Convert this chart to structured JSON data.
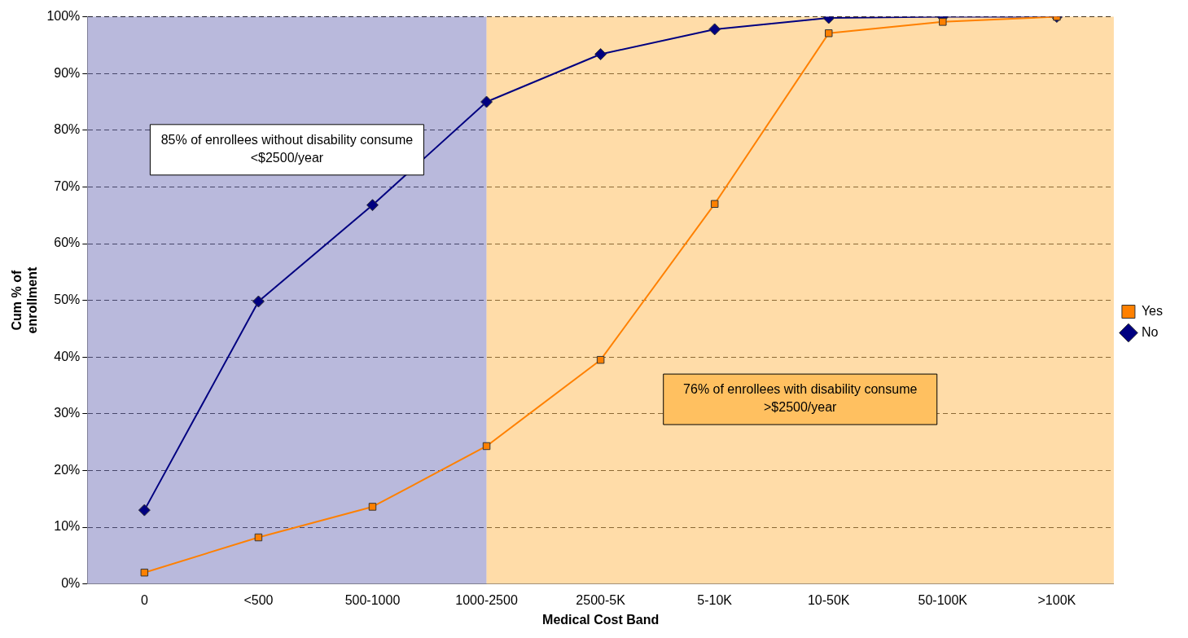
{
  "chart_data": {
    "type": "line",
    "xlabel": "Medical Cost Band",
    "ylabel": "Cum % of enrollment",
    "categories": [
      "0",
      "<500",
      "500-1000",
      "1000-2500",
      "2500-5K",
      "5-10K",
      "10-50K",
      "50-100K",
      ">100K"
    ],
    "series": [
      {
        "name": "No",
        "color": "#000080",
        "marker": "diamond",
        "values": [
          13,
          49.8,
          66.8,
          85,
          93.4,
          97.8,
          99.8,
          100,
          100
        ]
      },
      {
        "name": "Yes",
        "color": "#ff8000",
        "marker": "square",
        "values": [
          2,
          8.2,
          13.6,
          24.3,
          39.5,
          67,
          97.1,
          99.1,
          100
        ]
      }
    ],
    "ylim": [
      0,
      100
    ],
    "yticks": [
      {
        "value": 0,
        "label": "0%"
      },
      {
        "value": 10,
        "label": "10%"
      },
      {
        "value": 20,
        "label": "20%"
      },
      {
        "value": 30,
        "label": "30%"
      },
      {
        "value": 40,
        "label": "40%"
      },
      {
        "value": 50,
        "label": "50%"
      },
      {
        "value": 60,
        "label": "60%"
      },
      {
        "value": 70,
        "label": "70%"
      },
      {
        "value": 80,
        "label": "80%"
      },
      {
        "value": 90,
        "label": "90%"
      },
      {
        "value": 100,
        "label": "100%"
      }
    ],
    "bands": [
      {
        "axis": "x",
        "from": "0",
        "to": "1000-2500",
        "label": "85% of enrollees without disability consume <$2500/year",
        "color": "#8080c0"
      },
      {
        "axis": "x",
        "from": "1000-2500",
        "to": ">100K",
        "label": "76% of enrollees with disability consume >$2500/year",
        "color": "#ffc060"
      }
    ],
    "grid": "y",
    "legend": "right",
    "line_style": "solid"
  }
}
